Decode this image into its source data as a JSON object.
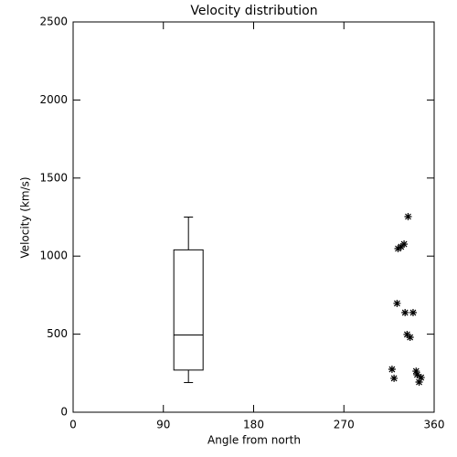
{
  "chart_data": {
    "type": "box",
    "title": "Velocity distribution",
    "xlabel": "Angle from north",
    "ylabel": "Velocity (km/s)",
    "xlim": [
      0,
      360
    ],
    "xticks": [
      0,
      90,
      180,
      270,
      360
    ],
    "ylim": [
      0,
      2500
    ],
    "yticks": [
      0,
      500,
      1000,
      1500,
      2000,
      2500
    ],
    "color": "#000000",
    "box": {
      "x": 115,
      "whisker_low": 190,
      "q1": 270,
      "median": 495,
      "q3": 1040,
      "whisker_high": 1250
    },
    "overlay": {
      "type": "scatter",
      "x": [
        334,
        318,
        320,
        323,
        324,
        327,
        330,
        331,
        333,
        336,
        339,
        342,
        343,
        345,
        347
      ],
      "y": [
        1253,
        275,
        217,
        697,
        1048,
        1060,
        1077,
        638,
        498,
        480,
        638,
        263,
        240,
        193,
        222
      ]
    }
  }
}
